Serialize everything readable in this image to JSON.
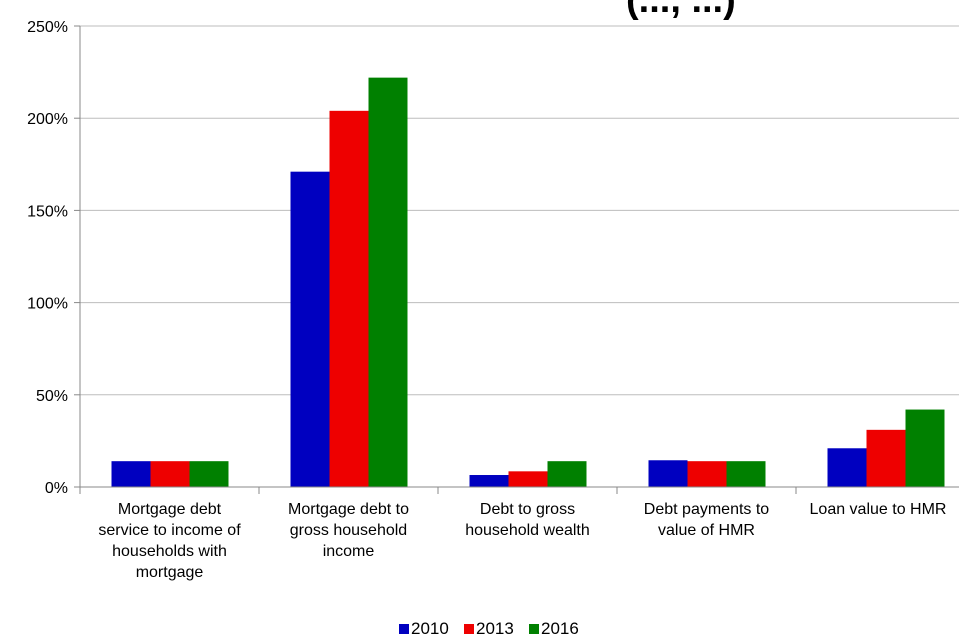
{
  "chart_data": {
    "type": "bar",
    "title_fragment": "(..., ...)",
    "categories": [
      "Mortgage debt service to income of households with mortgage",
      "Mortgage debt to gross household income",
      "Debt to gross household wealth",
      "Debt payments to value of HMR",
      "Loan value to HMR"
    ],
    "category_lines": [
      [
        "Mortgage debt",
        "service to income of",
        "households with",
        "mortgage"
      ],
      [
        "Mortgage debt to",
        "gross household",
        "income"
      ],
      [
        "Debt to gross",
        "household wealth"
      ],
      [
        "Debt payments to",
        "value of HMR"
      ],
      [
        "Loan value to HMR"
      ]
    ],
    "series": [
      {
        "name": "2010",
        "color": "#0000c0",
        "values": [
          14,
          171,
          6.5,
          14.5,
          21
        ]
      },
      {
        "name": "2013",
        "color": "#ee0000",
        "values": [
          14,
          204,
          8.5,
          14,
          31
        ]
      },
      {
        "name": "2016",
        "color": "#008000",
        "values": [
          14,
          222,
          14,
          14,
          42
        ]
      }
    ],
    "ylim": [
      0,
      250
    ],
    "yticks": [
      0,
      50,
      100,
      150,
      200,
      250
    ],
    "ytick_labels": [
      "0%",
      "50%",
      "100%",
      "150%",
      "200%",
      "250%"
    ],
    "grid": true,
    "legend_position": "bottom-center"
  }
}
